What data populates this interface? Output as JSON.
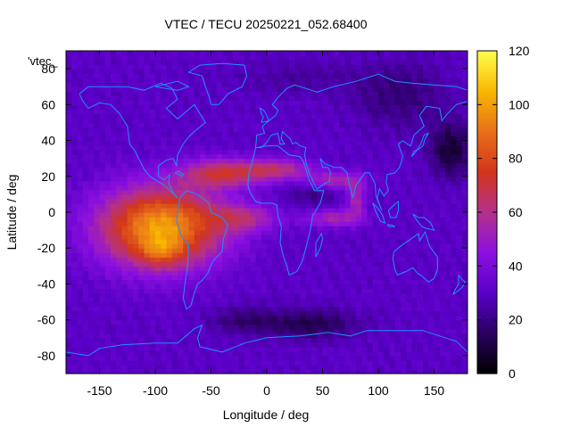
{
  "chart_data": {
    "type": "heatmap",
    "title": "VTEC / TECU 20250221_052.68400",
    "xlabel": "Longitude / deg",
    "ylabel": "Latitude / deg",
    "xlim": [
      -180,
      180
    ],
    "ylim": [
      -90,
      90
    ],
    "x_ticks": [
      -150,
      -100,
      -50,
      0,
      50,
      100,
      150
    ],
    "y_ticks": [
      -80,
      -60,
      -40,
      -20,
      0,
      20,
      40,
      60,
      80
    ],
    "legend_entry": "'vtec_",
    "colorbar": {
      "range": [
        0,
        120
      ],
      "ticks": [
        0,
        20,
        40,
        60,
        80,
        100,
        120
      ],
      "colormap": [
        "#000000",
        "#2a0060",
        "#5a00c8",
        "#8c10e0",
        "#b4308a",
        "#d2361a",
        "#e8701a",
        "#f8b800",
        "#ffff50"
      ]
    },
    "overlay": "coastlines",
    "overlay_color": "#1e90ff",
    "approx_features": [
      {
        "feature": "global_background_tec",
        "value": 30
      },
      {
        "feature": "equatorial_crest_peak",
        "lon": -95,
        "lat": -20,
        "value": 115
      },
      {
        "feature": "equatorial_crest_north",
        "lon": -40,
        "lat": 25,
        "value": 75
      },
      {
        "feature": "ring_arc",
        "lon": 60,
        "lat": 15,
        "value": 65
      },
      {
        "feature": "southern_mid_latitude_low",
        "lon": 40,
        "lat": -60,
        "value": 12
      },
      {
        "feature": "north_east_asia_low",
        "lon": 165,
        "lat": 35,
        "value": 8
      }
    ]
  }
}
